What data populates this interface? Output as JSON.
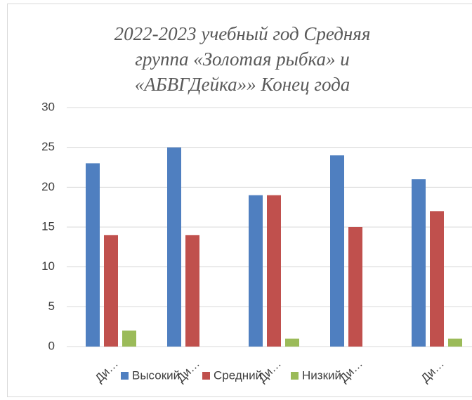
{
  "chart_data": {
    "type": "bar",
    "title": "2022-2023 учебный год Средняя группа «Золотая рыбка» и «АБВГДейка»» Конец года",
    "categories": [
      "Ди…",
      "Ди…",
      "Ди…",
      "Ди…",
      "Ди…"
    ],
    "series": [
      {
        "name": "Высокий",
        "color": "#4f7fc0",
        "values": [
          23,
          25,
          19,
          24,
          21
        ]
      },
      {
        "name": "Средний",
        "color": "#c0504d",
        "values": [
          14,
          14,
          19,
          15,
          17
        ]
      },
      {
        "name": "Низкий",
        "color": "#9bbb59",
        "values": [
          2,
          0,
          1,
          0,
          1
        ]
      }
    ],
    "ylim": [
      0,
      30
    ],
    "yticks": [
      0,
      5,
      10,
      15,
      20,
      25,
      30
    ],
    "grid": true,
    "legend": "bottom"
  }
}
